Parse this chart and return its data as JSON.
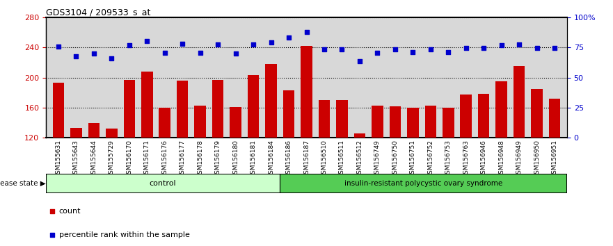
{
  "title": "GDS3104 / 209533_s_at",
  "samples": [
    "GSM155631",
    "GSM155643",
    "GSM155644",
    "GSM155729",
    "GSM156170",
    "GSM156171",
    "GSM156176",
    "GSM156177",
    "GSM156178",
    "GSM156179",
    "GSM156180",
    "GSM156181",
    "GSM156184",
    "GSM156186",
    "GSM156187",
    "GSM156510",
    "GSM156511",
    "GSM156512",
    "GSM156749",
    "GSM156750",
    "GSM156751",
    "GSM156752",
    "GSM156753",
    "GSM156763",
    "GSM156946",
    "GSM156948",
    "GSM156949",
    "GSM156950",
    "GSM156951"
  ],
  "bar_values": [
    193,
    133,
    140,
    132,
    197,
    208,
    160,
    196,
    163,
    197,
    161,
    203,
    218,
    183,
    242,
    170,
    170,
    126,
    163,
    162,
    160,
    163,
    160,
    177,
    178,
    195,
    215,
    185,
    172
  ],
  "dot_values": [
    241,
    228,
    232,
    225,
    243,
    248,
    233,
    245,
    233,
    244,
    232,
    244,
    247,
    253,
    260,
    237,
    237,
    222,
    233,
    237,
    234,
    237,
    234,
    239,
    239,
    243,
    244,
    239,
    239
  ],
  "control_count": 13,
  "disease_count": 16,
  "ylim_left": [
    120,
    280
  ],
  "ylim_right": [
    0,
    100
  ],
  "yticks_left": [
    120,
    160,
    200,
    240,
    280
  ],
  "yticks_right": [
    0,
    25,
    50,
    75,
    100
  ],
  "bar_color": "#cc0000",
  "dot_color": "#0000cc",
  "bg_color": "#d8d8d8",
  "control_bg": "#ccffcc",
  "disease_bg": "#55cc55",
  "control_label": "control",
  "disease_label": "insulin-resistant polycystic ovary syndrome",
  "legend_count_label": "count",
  "legend_pct_label": "percentile rank within the sample",
  "disease_state_label": "disease state"
}
